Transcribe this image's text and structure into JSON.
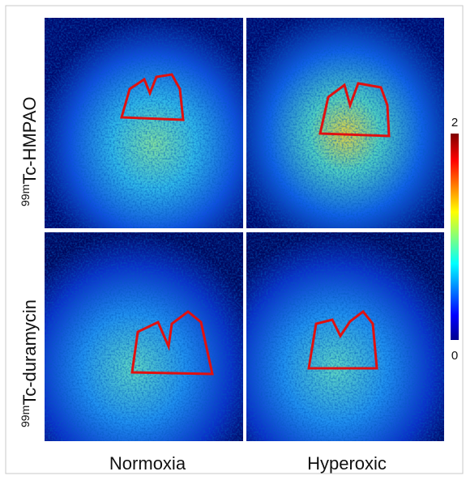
{
  "rows": [
    {
      "superscript": "99m",
      "text": "Tc-HMPAO"
    },
    {
      "superscript": "99m",
      "text": "Tc-duramycin"
    }
  ],
  "columns": [
    "Normoxia",
    "Hyperoxic"
  ],
  "colorbar": {
    "max": "2",
    "min": "0"
  }
}
